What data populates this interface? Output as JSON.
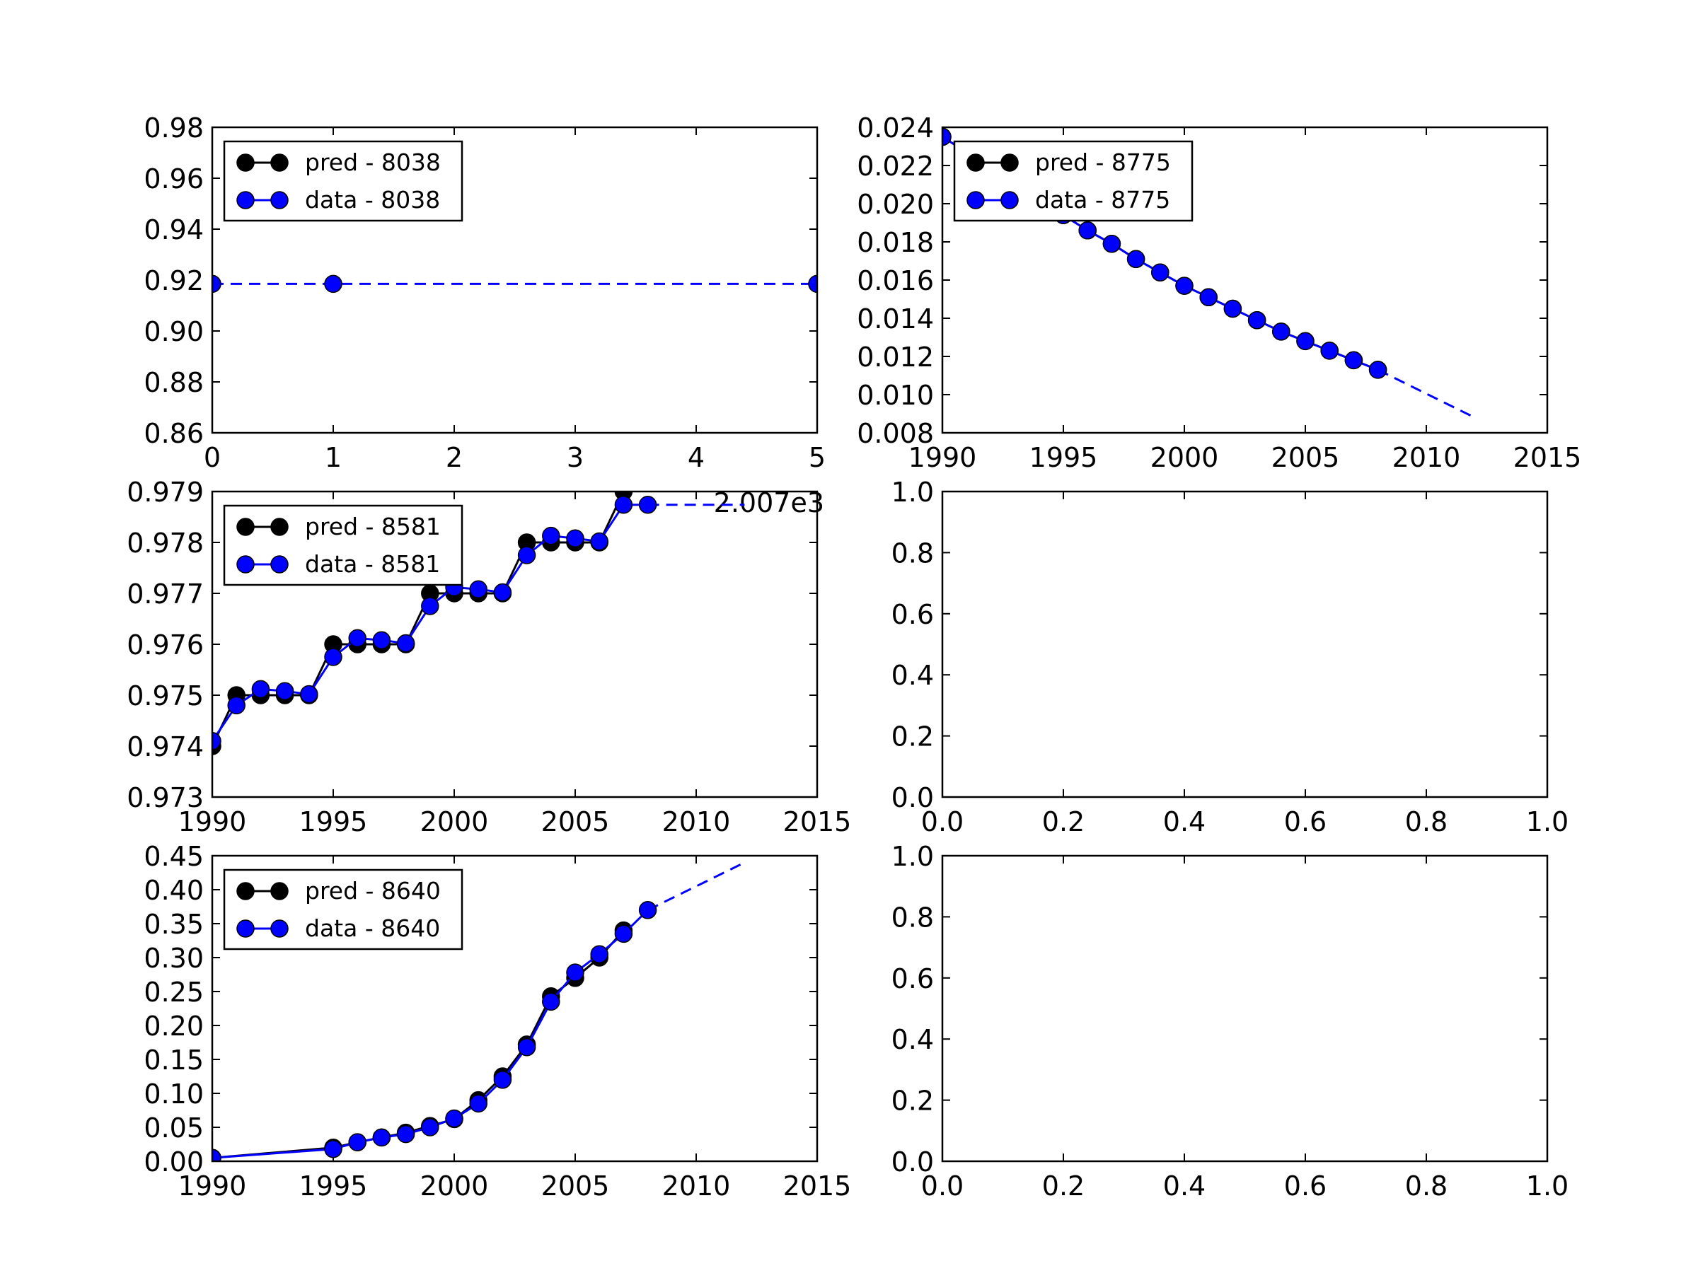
{
  "chart_data": [
    {
      "id": "ax-8038",
      "type": "line",
      "xlim": [
        0,
        5
      ],
      "ylim": [
        0.86,
        0.98
      ],
      "xticks": [
        "0",
        "1",
        "2",
        "3",
        "4",
        "5"
      ],
      "yticks": [
        "0.86",
        "0.88",
        "0.90",
        "0.92",
        "0.94",
        "0.96",
        "0.98"
      ],
      "series": [
        {
          "name": "pred - 8038",
          "color": "#000000",
          "x": [],
          "y": []
        },
        {
          "name": "data - 8038",
          "color": "#0000ff",
          "x": [
            0,
            1,
            5
          ],
          "y": [
            0.9185,
            0.9185,
            0.9185
          ]
        }
      ],
      "dashed_extension": {
        "color": "#0000ff",
        "x": [
          0,
          5
        ],
        "y": [
          0.9185,
          0.9185
        ]
      },
      "legend": "upper-left",
      "overflow_text": "2.007e3"
    },
    {
      "id": "ax-8775",
      "type": "line",
      "xlim": [
        1990,
        2015
      ],
      "ylim": [
        0.008,
        0.024
      ],
      "xticks": [
        "1990",
        "1995",
        "2000",
        "2005",
        "2010",
        "2015"
      ],
      "yticks": [
        "0.008",
        "0.010",
        "0.012",
        "0.014",
        "0.016",
        "0.018",
        "0.020",
        "0.022",
        "0.024"
      ],
      "series": [
        {
          "name": "pred - 8775",
          "color": "#000000",
          "x": [
            1990,
            1991,
            1992,
            1993,
            1994,
            1995,
            1996,
            1997,
            1998,
            1999,
            2000,
            2001,
            2002,
            2003,
            2004,
            2005,
            2006,
            2007,
            2008
          ],
          "y": [
            0.0235,
            0.0227,
            0.0218,
            0.0209,
            0.0201,
            0.0194,
            0.0186,
            0.0179,
            0.0171,
            0.0164,
            0.0157,
            0.0151,
            0.0145,
            0.0139,
            0.0133,
            0.0128,
            0.0123,
            0.0118,
            0.0113
          ]
        },
        {
          "name": "data - 8775",
          "color": "#0000ff",
          "x": [
            1990,
            1991,
            1992,
            1993,
            1994,
            1995,
            1996,
            1997,
            1998,
            1999,
            2000,
            2001,
            2002,
            2003,
            2004,
            2005,
            2006,
            2007,
            2008
          ],
          "y": [
            0.0235,
            0.0227,
            0.0218,
            0.0209,
            0.0201,
            0.0194,
            0.0186,
            0.0179,
            0.0171,
            0.0164,
            0.0157,
            0.0151,
            0.0145,
            0.0139,
            0.0133,
            0.0128,
            0.0123,
            0.0118,
            0.0113
          ]
        }
      ],
      "dashed_extension": {
        "color": "#0000ff",
        "x": [
          2008,
          2012
        ],
        "y": [
          0.0113,
          0.0088
        ]
      },
      "legend": "upper-left"
    },
    {
      "id": "ax-8581",
      "type": "line",
      "xlim": [
        1990,
        2015
      ],
      "ylim": [
        0.973,
        0.979
      ],
      "xticks": [
        "1990",
        "1995",
        "2000",
        "2005",
        "2010",
        "2015"
      ],
      "yticks": [
        "0.973",
        "0.974",
        "0.975",
        "0.976",
        "0.977",
        "0.978",
        "0.979"
      ],
      "series": [
        {
          "name": "pred - 8581",
          "color": "#000000",
          "x": [
            1990,
            1991,
            1992,
            1993,
            1994,
            1995,
            1996,
            1997,
            1998,
            1999,
            2000,
            2001,
            2002,
            2003,
            2004,
            2005,
            2006,
            2007
          ],
          "y": [
            0.974,
            0.975,
            0.975,
            0.975,
            0.975,
            0.976,
            0.976,
            0.976,
            0.976,
            0.977,
            0.977,
            0.977,
            0.977,
            0.978,
            0.978,
            0.978,
            0.978,
            0.979
          ]
        },
        {
          "name": "data - 8581",
          "color": "#0000ff",
          "x": [
            1990,
            1991,
            1992,
            1993,
            1994,
            1995,
            1996,
            1997,
            1998,
            1999,
            2000,
            2001,
            2002,
            2003,
            2004,
            2005,
            2006,
            2007,
            2008
          ],
          "y": [
            0.9741,
            0.9748,
            0.97512,
            0.97508,
            0.97502,
            0.97575,
            0.97612,
            0.97608,
            0.97602,
            0.97675,
            0.97712,
            0.97708,
            0.97702,
            0.97775,
            0.97813,
            0.97808,
            0.97802,
            0.97874,
            0.97874
          ]
        }
      ],
      "dashed_extension": {
        "color": "#0000ff",
        "x": [
          2008,
          2012
        ],
        "y": [
          0.97874,
          0.97874
        ]
      },
      "legend": "upper-left"
    },
    {
      "id": "ax-empty-1",
      "type": "line",
      "xlim": [
        0,
        1
      ],
      "ylim": [
        0,
        1
      ],
      "xticks": [
        "0.0",
        "0.2",
        "0.4",
        "0.6",
        "0.8",
        "1.0"
      ],
      "yticks": [
        "0.0",
        "0.2",
        "0.4",
        "0.6",
        "0.8",
        "1.0"
      ],
      "series": []
    },
    {
      "id": "ax-8640",
      "type": "line",
      "xlim": [
        1990,
        2015
      ],
      "ylim": [
        0.0,
        0.45
      ],
      "xticks": [
        "1990",
        "1995",
        "2000",
        "2005",
        "2010",
        "2015"
      ],
      "yticks": [
        "0.00",
        "0.05",
        "0.10",
        "0.15",
        "0.20",
        "0.25",
        "0.30",
        "0.35",
        "0.40",
        "0.45"
      ],
      "series": [
        {
          "name": "pred - 8640",
          "color": "#000000",
          "x": [
            1990,
            1995,
            1996,
            1997,
            1998,
            1999,
            2000,
            2001,
            2002,
            2003,
            2004,
            2005,
            2006,
            2007
          ],
          "y": [
            0.005,
            0.02,
            0.028,
            0.035,
            0.042,
            0.052,
            0.062,
            0.09,
            0.125,
            0.172,
            0.243,
            0.27,
            0.3,
            0.34
          ]
        },
        {
          "name": "data - 8640",
          "color": "#0000ff",
          "x": [
            1990,
            1995,
            1996,
            1997,
            1998,
            1999,
            2000,
            2001,
            2002,
            2003,
            2004,
            2005,
            2006,
            2007,
            2008
          ],
          "y": [
            0.005,
            0.018,
            0.028,
            0.035,
            0.04,
            0.05,
            0.063,
            0.085,
            0.12,
            0.168,
            0.235,
            0.278,
            0.305,
            0.335,
            0.37
          ]
        }
      ],
      "dashed_extension": {
        "color": "#0000ff",
        "x": [
          2008,
          2012
        ],
        "y": [
          0.37,
          0.44
        ]
      },
      "legend": "upper-left"
    },
    {
      "id": "ax-empty-2",
      "type": "line",
      "xlim": [
        0,
        1
      ],
      "ylim": [
        0,
        1
      ],
      "xticks": [
        "0.0",
        "0.2",
        "0.4",
        "0.6",
        "0.8",
        "1.0"
      ],
      "yticks": [
        "0.0",
        "0.2",
        "0.4",
        "0.6",
        "0.8",
        "1.0"
      ],
      "series": []
    }
  ]
}
